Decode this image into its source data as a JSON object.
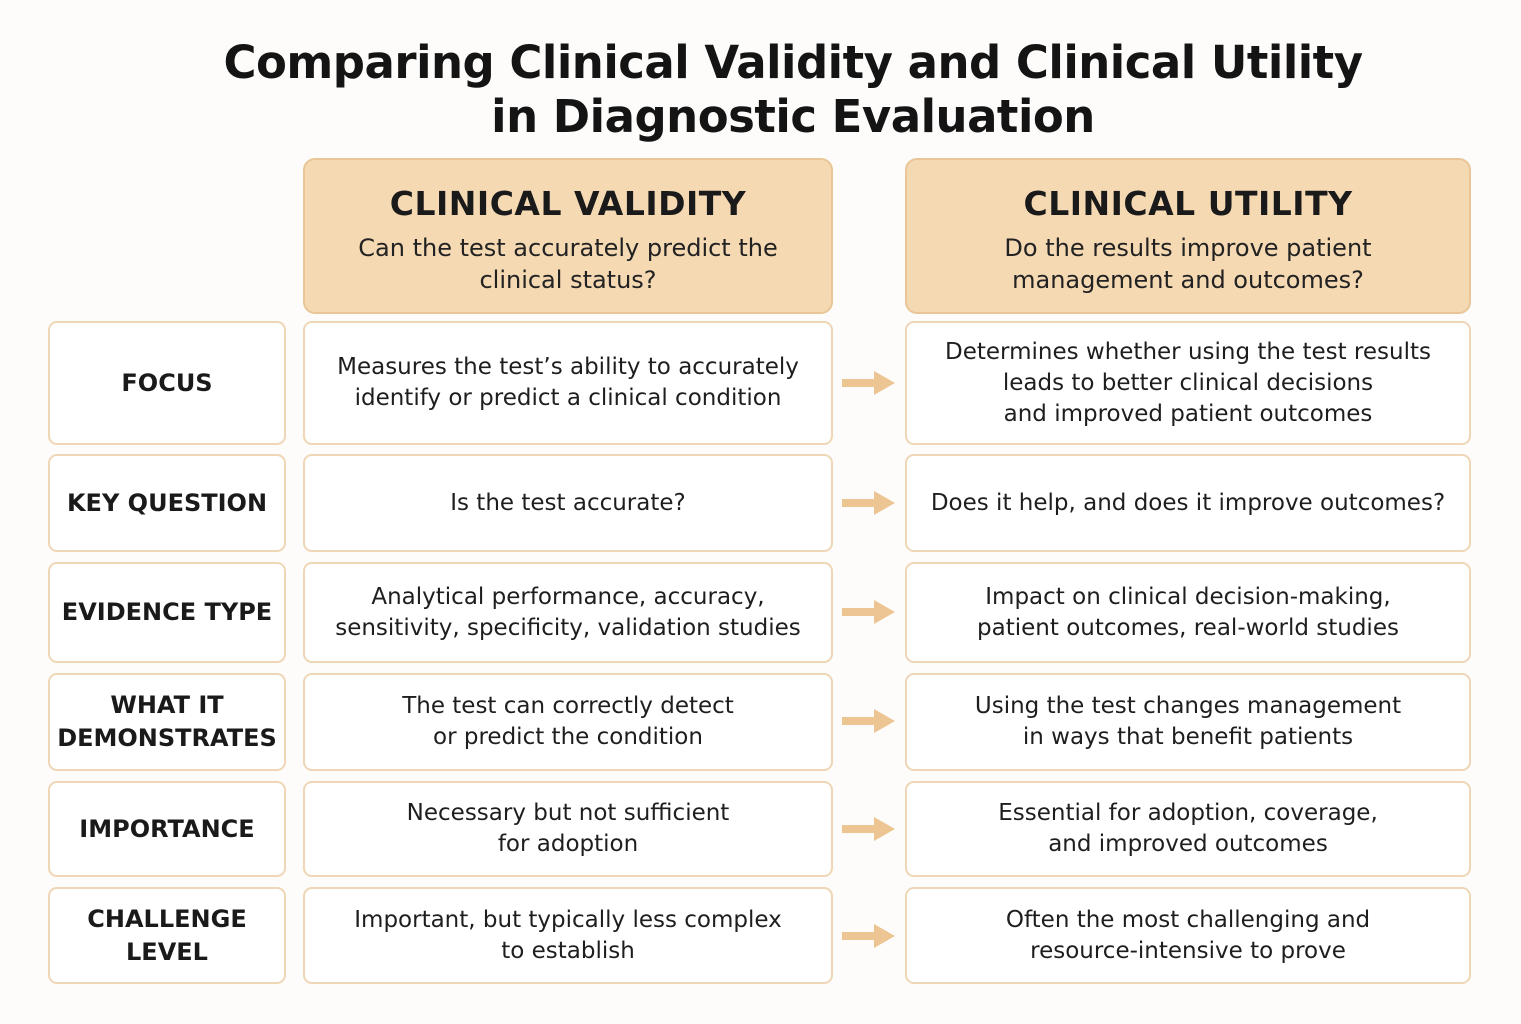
{
  "title": {
    "line1": "Comparing Clinical Validity and Clinical Utility",
    "line2": "in Diagnostic Evaluation"
  },
  "columns": {
    "validity": {
      "title": "CLINICAL VALIDITY",
      "subtitle": "Can the test accurately predict the clinical status?"
    },
    "utility": {
      "title": "CLINICAL UTILITY",
      "subtitle": "Do the results improve patient management and outcomes?"
    }
  },
  "rows": [
    {
      "label": "FOCUS",
      "validity": "Measures the test’s ability to accurately\nidentify or predict a clinical condition",
      "utility": "Determines whether using the test results\nleads to better clinical decisions\nand improved patient outcomes"
    },
    {
      "label": "KEY QUESTION",
      "validity": "Is the test accurate?",
      "utility": "Does it help, and does it improve outcomes?"
    },
    {
      "label": "EVIDENCE TYPE",
      "validity": "Analytical performance, accuracy,\nsensitivity, specificity, validation studies",
      "utility": "Impact on clinical decision-making,\npatient outcomes, real-world studies"
    },
    {
      "label": "WHAT IT\nDEMONSTRATES",
      "validity": "The test can correctly detect\nor predict the condition",
      "utility": "Using the test changes management\nin ways that benefit patients"
    },
    {
      "label": "IMPORTANCE",
      "validity": "Necessary but not sufficient\nfor adoption",
      "utility": "Essential for adoption, coverage,\nand improved outcomes"
    },
    {
      "label": "CHALLENGE LEVEL",
      "validity": "Important, but typically less complex\nto establish",
      "utility": "Often the most challenging and\nresource-intensive to prove"
    }
  ],
  "colors": {
    "header_fill": "#f5d9b3",
    "header_border": "#e9c597",
    "cell_border": "#efd6b6",
    "arrow": "#ecc592"
  },
  "icons": {
    "row_arrow": "right-arrow-icon"
  }
}
